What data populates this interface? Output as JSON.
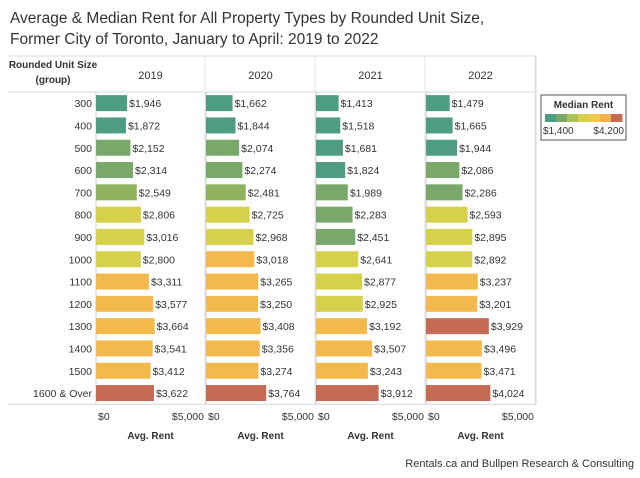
{
  "title_line1": "Average & Median Rent for All Property Types by Rounded Unit Size,",
  "title_line2": "Former City of Toronto, January to April: 2019 to 2022",
  "source": "Rentals.ca and Bullpen Research & Consulting",
  "legend": {
    "title": "Median Rent",
    "min_label": "$1,400",
    "max_label": "$4,200",
    "colors": [
      "#4e9c84",
      "#7aa86a",
      "#a8c45a",
      "#d6d04a",
      "#f0c84a",
      "#f3b04c",
      "#c76a53"
    ]
  },
  "chart_data": {
    "type": "bar",
    "orientation": "horizontal",
    "row_axis_title": "Rounded Unit Size (group)",
    "categories": [
      "300",
      "400",
      "500",
      "600",
      "700",
      "800",
      "900",
      "1000",
      "1100",
      "1200",
      "1300",
      "1400",
      "1500",
      "1600 & Over"
    ],
    "xlabel": "Avg. Rent",
    "xlim": [
      0,
      5000
    ],
    "tick_labels": [
      "$0",
      "$5,000"
    ],
    "series": [
      {
        "name": "2019",
        "values": [
          1946,
          1872,
          2152,
          2314,
          2549,
          2806,
          3016,
          2800,
          3311,
          3577,
          3664,
          3541,
          3412,
          3622
        ],
        "labels": [
          "$1,946",
          "$1,872",
          "$2,152",
          "$2,314",
          "$2,549",
          "$2,806",
          "$3,016",
          "$2,800",
          "$3,311",
          "$3,577",
          "$3,664",
          "$3,541",
          "$3,412",
          "$3,622"
        ],
        "colors": [
          "#4e9c84",
          "#4e9c84",
          "#7aa86a",
          "#7aa86a",
          "#8fb25f",
          "#d6d04a",
          "#d6d04a",
          "#d6d04a",
          "#f3b94c",
          "#f3b94c",
          "#f3b94c",
          "#f3b94c",
          "#f3b94c",
          "#c76a53"
        ]
      },
      {
        "name": "2020",
        "values": [
          1662,
          1844,
          2074,
          2274,
          2481,
          2725,
          2968,
          3018,
          3265,
          3250,
          3408,
          3356,
          3274,
          3764
        ],
        "labels": [
          "$1,662",
          "$1,844",
          "$2,074",
          "$2,274",
          "$2,481",
          "$2,725",
          "$2,968",
          "$3,018",
          "$3,265",
          "$3,250",
          "$3,408",
          "$3,356",
          "$3,274",
          "$3,764"
        ],
        "colors": [
          "#4e9c84",
          "#4e9c84",
          "#7aa86a",
          "#7aa86a",
          "#8fb25f",
          "#d6d04a",
          "#d6d04a",
          "#f3b94c",
          "#f3b94c",
          "#f3b94c",
          "#f3b94c",
          "#f3b94c",
          "#f3b94c",
          "#c76a53"
        ]
      },
      {
        "name": "2021",
        "values": [
          1413,
          1518,
          1681,
          1824,
          1989,
          2283,
          2451,
          2641,
          2877,
          2925,
          3192,
          3507,
          3243,
          3912
        ],
        "labels": [
          "$1,413",
          "$1,518",
          "$1,681",
          "$1,824",
          "$1,989",
          "$2,283",
          "$2,451",
          "$2,641",
          "$2,877",
          "$2,925",
          "$3,192",
          "$3,507",
          "$3,243",
          "$3,912"
        ],
        "colors": [
          "#4e9c84",
          "#4e9c84",
          "#4e9c84",
          "#4e9c84",
          "#7aa86a",
          "#7aa86a",
          "#7aa86a",
          "#d6d04a",
          "#d6d04a",
          "#d6d04a",
          "#f3b94c",
          "#f3b94c",
          "#f3b94c",
          "#c76a53"
        ]
      },
      {
        "name": "2022",
        "values": [
          1479,
          1665,
          1944,
          2086,
          2286,
          2593,
          2895,
          2892,
          3237,
          3201,
          3929,
          3496,
          3471,
          4024
        ],
        "labels": [
          "$1,479",
          "$1,665",
          "$1,944",
          "$2,086",
          "$2,286",
          "$2,593",
          "$2,895",
          "$2,892",
          "$3,237",
          "$3,201",
          "$3,929",
          "$3,496",
          "$3,471",
          "$4,024"
        ],
        "colors": [
          "#4e9c84",
          "#4e9c84",
          "#4e9c84",
          "#7aa86a",
          "#7aa86a",
          "#d6d04a",
          "#d6d04a",
          "#d6d04a",
          "#f3b94c",
          "#f3b94c",
          "#c76a53",
          "#f3b94c",
          "#f3b94c",
          "#c76a53"
        ]
      }
    ]
  }
}
